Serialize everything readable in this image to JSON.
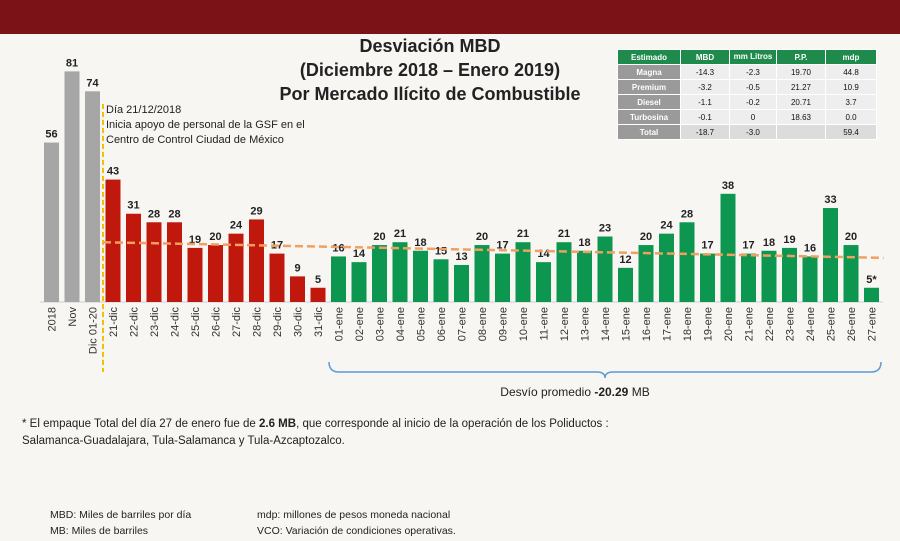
{
  "title": {
    "line1": "Desviación MBD",
    "line2": "(Diciembre 2018 – Enero 2019)",
    "line3": "Por Mercado Ilícito de Combustible"
  },
  "annotation": {
    "line1": "Día 21/12/2018",
    "line2": "Inicia apoyo de personal de la GSF en el",
    "line3": "Centro de Control Ciudad de México"
  },
  "table": {
    "headers": [
      "Estimado",
      "MBD",
      "mm Litros",
      "P.P.",
      "mdp"
    ],
    "rows": [
      [
        "Magna",
        "-14.3",
        "-2.3",
        "19.70",
        "44.8"
      ],
      [
        "Premium",
        "-3.2",
        "-0.5",
        "21.27",
        "10.9"
      ],
      [
        "Diesel",
        "-1.1",
        "-0.2",
        "20.71",
        "3.7"
      ],
      [
        "Turbosina",
        "-0.1",
        "0",
        "18.63",
        "0.0"
      ],
      [
        "Total",
        "-18.7",
        "-3.0",
        "",
        "59.4"
      ]
    ]
  },
  "chart_data": {
    "type": "bar",
    "categories": [
      "2018",
      "Nov",
      "Dic 01-20",
      "21-dic",
      "22-dic",
      "23-dic",
      "24-dic",
      "25-dic",
      "26-dic",
      "27-dic",
      "28-dic",
      "29-dic",
      "30-dic",
      "31-dic",
      "01-ene",
      "02-ene",
      "03-ene",
      "04-ene",
      "05-ene",
      "06-ene",
      "07-ene",
      "08-ene",
      "09-ene",
      "10-ene",
      "11-ene",
      "12-ene",
      "13-ene",
      "14-ene",
      "15-ene",
      "16-ene",
      "17-ene",
      "18-ene",
      "19-ene",
      "20-ene",
      "21-ene",
      "22-ene",
      "23-ene",
      "24-ene",
      "25-ene",
      "26-ene",
      "27-ene"
    ],
    "values": [
      56,
      81,
      74,
      43,
      31,
      28,
      28,
      19,
      20,
      24,
      29,
      17,
      9,
      5,
      16,
      14,
      20,
      21,
      18,
      15,
      13,
      20,
      17,
      21,
      14,
      21,
      18,
      23,
      12,
      20,
      24,
      28,
      17,
      38,
      17,
      18,
      19,
      16,
      33,
      20,
      5
    ],
    "value_labels": [
      "56",
      "81",
      "74",
      "43",
      "31",
      "28",
      "28",
      "19",
      "20",
      "24",
      "29",
      "17",
      "9",
      "5",
      "16",
      "14",
      "20",
      "21",
      "18",
      "15",
      "13",
      "20",
      "17",
      "21",
      "14",
      "21",
      "18",
      "23",
      "12",
      "20",
      "24",
      "28",
      "17",
      "38",
      "17",
      "18",
      "19",
      "16",
      "33",
      "20",
      "5*"
    ],
    "ylim": [
      0,
      85
    ],
    "colors": {
      "history": "#a6a6a6",
      "december": "#c0180c",
      "january": "#0c9650",
      "trend": "#f0a060",
      "marker": "#f2c200",
      "bracket": "#5b9bd5"
    },
    "groups": [
      {
        "name": "history",
        "start": 0,
        "end": 2
      },
      {
        "name": "december",
        "start": 3,
        "end": 13
      },
      {
        "name": "january",
        "start": 14,
        "end": 40
      }
    ],
    "trendline": {
      "from_value": 21,
      "to_value": 15.5
    },
    "bracket_label_prefix": "Desvío promedio ",
    "bracket_label_value": "-20.29",
    "bracket_label_suffix": " MB"
  },
  "footnote": {
    "part1": "* El empaque Total del día 27 de enero fue de ",
    "bold": "2.6 MB",
    "part2": ", que corresponde al inicio de la operación de los Poliductos :",
    "line2": "Salamanca-Guadalajara, Tula-Salamanca y Tula-Azcaptozalco."
  },
  "legend": {
    "mbd": "MBD: Miles de barriles por día",
    "mb": "MB: Miles de barriles",
    "mdp": "mdp: millones de pesos moneda nacional",
    "vco": "VCO: Variación de condiciones operativas."
  }
}
